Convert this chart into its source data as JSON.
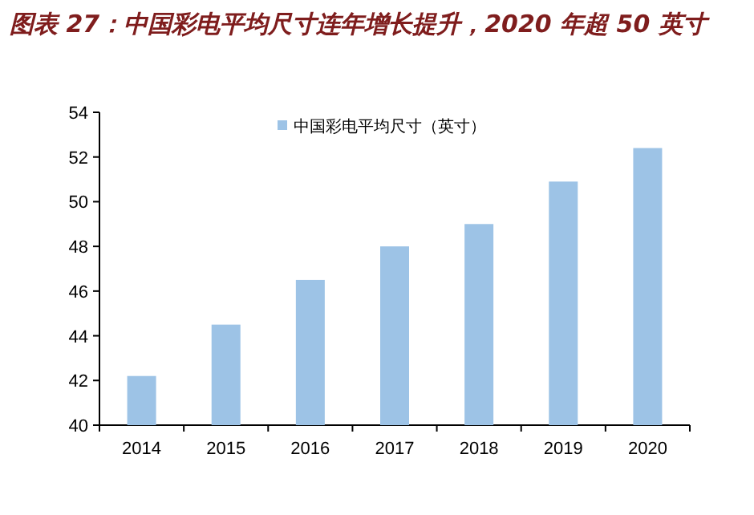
{
  "chart_data": {
    "type": "bar",
    "title": "图表 27：中国彩电平均尺寸连年增长提升，2020 年超 50 英寸",
    "categories": [
      "2014",
      "2015",
      "2016",
      "2017",
      "2018",
      "2019",
      "2020"
    ],
    "series": [
      {
        "name": "中国彩电平均尺寸（英寸）",
        "color": "#9dc3e6",
        "values": [
          42.2,
          44.5,
          46.5,
          48.0,
          49.0,
          50.9,
          52.4
        ]
      }
    ],
    "ylim": [
      40,
      54
    ],
    "yticks": [
      40,
      42,
      44,
      46,
      48,
      50,
      52,
      54
    ],
    "legend": "top",
    "grid": false
  }
}
